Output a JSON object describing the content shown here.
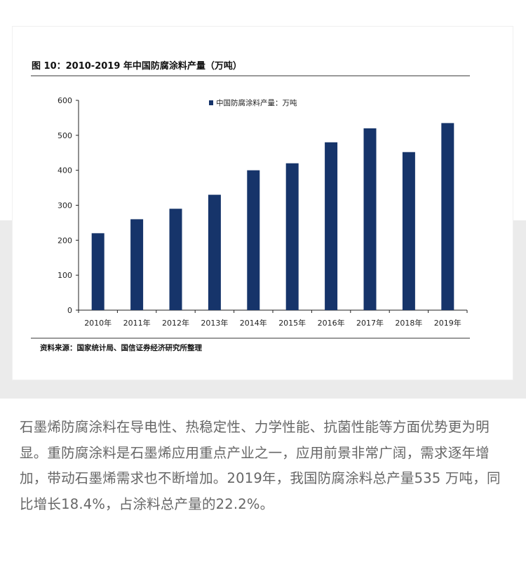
{
  "figure": {
    "title": "图 10：2010-2019 年中国防腐涂料产量（万吨）",
    "source": "资料来源：国家统计局、国信证券经济研究所整理"
  },
  "chart_data": {
    "type": "bar",
    "categories": [
      "2010年",
      "2011年",
      "2012年",
      "2013年",
      "2014年",
      "2015年",
      "2016年",
      "2017年",
      "2018年",
      "2019年"
    ],
    "series": [
      {
        "name": "中国防腐涂料产量：万吨",
        "values": [
          220,
          260,
          290,
          330,
          400,
          420,
          480,
          520,
          452,
          535
        ]
      }
    ],
    "yticks": [
      0,
      100,
      200,
      300,
      400,
      500,
      600
    ],
    "ylim": [
      0,
      600
    ],
    "legend_position": "top-left",
    "grid": false,
    "bar_color": "#16346a"
  },
  "article": {
    "paragraph": "石墨烯防腐涂料在导电性、热稳定性、力学性能、抗菌性能等方面优势更为明显。重防腐涂料是石墨烯应用重点产业之一，应用前景非常广阔，需求逐年增加，带动石墨烯需求也不断增加。2019年，我国防腐涂料总产量535 万吨，同比增长18.4%，占涂料总产量的22.2%。"
  }
}
